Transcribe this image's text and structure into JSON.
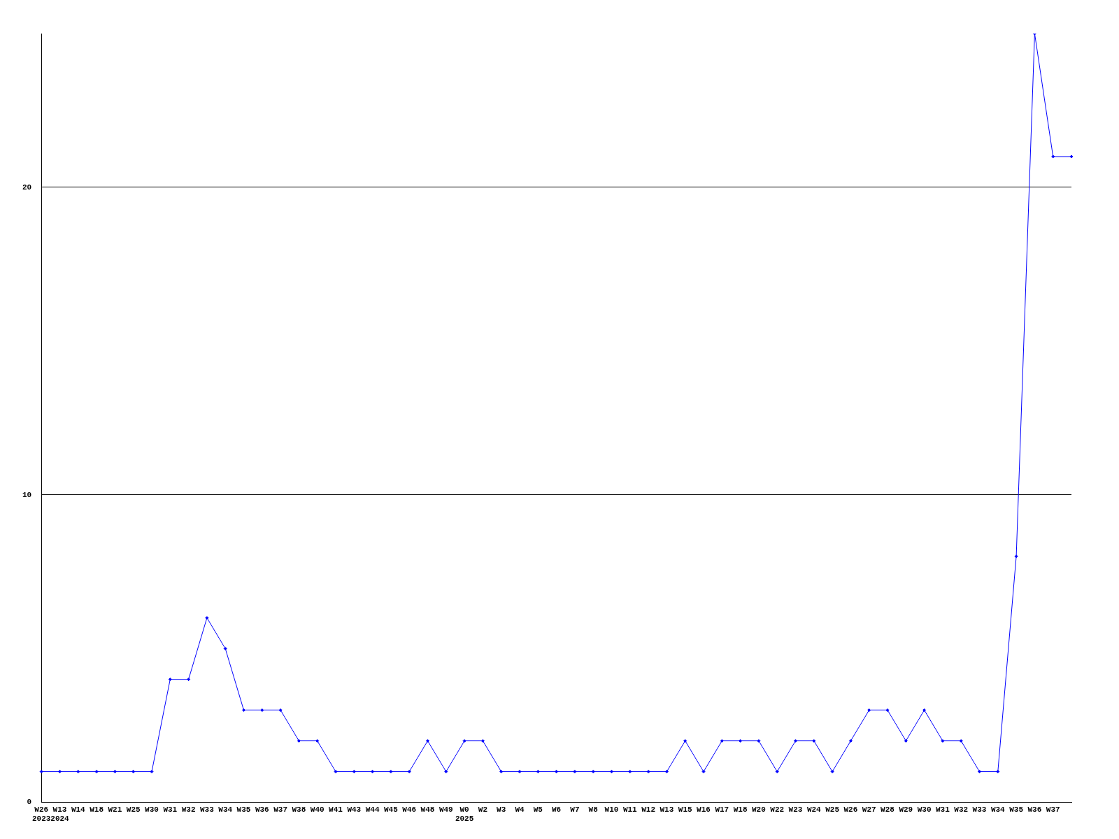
{
  "chart_data": {
    "type": "line",
    "categories": [
      "W26\n2023",
      "W13\n2024",
      "W14",
      "W18",
      "W21",
      "W25",
      "W30",
      "W31",
      "W32",
      "W33",
      "W34",
      "W35",
      "W36",
      "W37",
      "W38",
      "W40",
      "W41",
      "W43",
      "W44",
      "W45",
      "W46",
      "W48",
      "W49",
      "W0\n2025",
      "W2",
      "W3",
      "W4",
      "W5",
      "W6",
      "W7",
      "W8",
      "W10",
      "W11",
      "W12",
      "W13",
      "W15",
      "W16",
      "W17",
      "W18",
      "W20",
      "W22",
      "W23",
      "W24",
      "W25",
      "W26",
      "W27",
      "W28",
      "W29",
      "W30",
      "W31",
      "W32",
      "W33",
      "W34",
      "W35",
      "W36",
      "W37",
      null
    ],
    "series": [
      {
        "color": "#0000ff",
        "values": [
          1,
          1,
          1,
          1,
          1,
          1,
          1,
          4,
          4,
          6,
          5,
          3,
          3,
          3,
          2,
          2,
          1,
          1,
          1,
          1,
          1,
          2,
          1,
          2,
          2,
          1,
          1,
          1,
          1,
          1,
          1,
          1,
          1,
          1,
          1,
          2,
          1,
          2,
          2,
          2,
          1,
          2,
          2,
          1,
          2,
          3,
          3,
          2,
          3,
          2,
          2,
          1,
          1,
          8,
          25,
          21,
          21
        ]
      }
    ],
    "ylim": [
      0,
      25
    ],
    "yticks": [
      0,
      10,
      20
    ],
    "grid": "y",
    "legend": false,
    "marker": "diamond",
    "line_style": "solid"
  }
}
